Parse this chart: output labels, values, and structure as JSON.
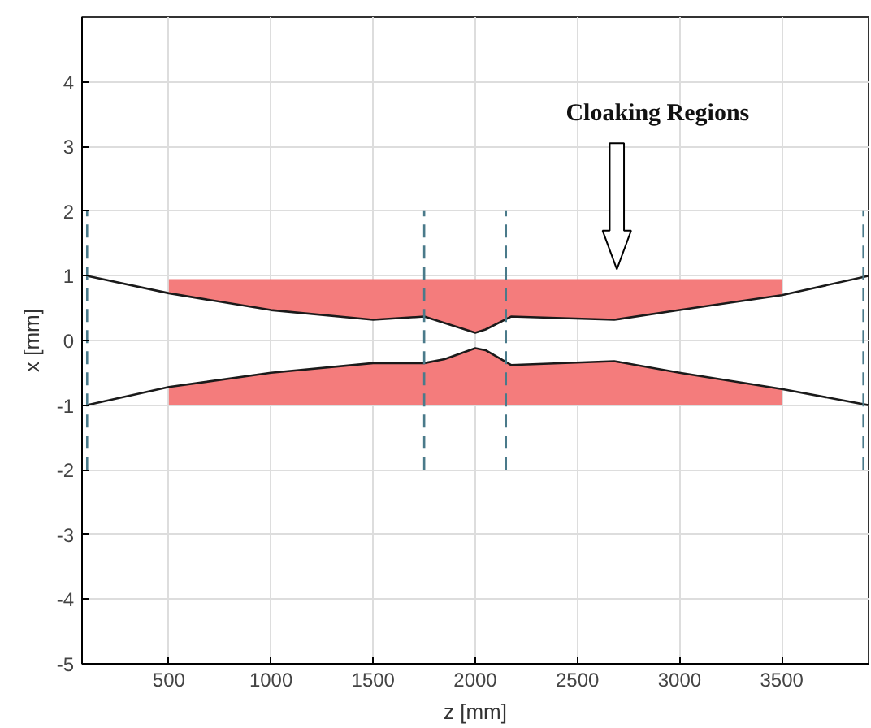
{
  "chart_data": {
    "type": "line",
    "xlabel": "z [mm]",
    "ylabel": "x [mm]",
    "xlim": [
      75,
      3925
    ],
    "ylim": [
      -5,
      5
    ],
    "xticks": [
      500,
      1000,
      1500,
      2000,
      2500,
      3000,
      3500
    ],
    "yticks": [
      -5,
      -4,
      -3,
      -2,
      -1,
      0,
      1,
      2,
      3,
      4
    ],
    "grid": true,
    "annotations": [
      "Cloaking Regions"
    ],
    "series": [
      {
        "color": "#f47c7c",
        "x": [
          500,
          1000,
          1500,
          1750,
          1850,
          2000,
          2050,
          2175,
          2680,
          3000,
          3500
        ],
        "values": [
          null,
          null,
          null,
          null,
          null,
          null,
          null,
          null,
          null,
          null,
          null
        ],
        "lower": [
          0.73,
          0.47,
          0.32,
          0.37,
          0.27,
          0.12,
          0.17,
          0.37,
          0.32,
          0.47,
          0.7
        ],
        "upper": [
          0.95,
          0.95,
          0.95,
          0.95,
          0.95,
          0.95,
          0.95,
          0.95,
          0.95,
          0.95,
          0.95
        ]
      },
      {
        "color": "#f47c7c",
        "x": [
          500,
          1000,
          1500,
          1750,
          1850,
          2000,
          2050,
          2175,
          2680,
          3000,
          3500
        ],
        "values": [
          null,
          null,
          null,
          null,
          null,
          null,
          null,
          null,
          null,
          null,
          null
        ],
        "lower": [
          -1,
          -1,
          -1,
          -1,
          -1,
          -1,
          -1,
          -1,
          -1,
          -1,
          -1
        ],
        "upper": [
          -0.72,
          -0.5,
          -0.35,
          -0.35,
          -0.29,
          -0.12,
          -0.15,
          -0.38,
          -0.32,
          -0.5,
          -0.75
        ]
      },
      {
        "color": "#1a1a1a",
        "x": [
          100,
          500,
          1000,
          1500,
          1750,
          1850,
          2000,
          2050,
          2175,
          2680,
          3000,
          3500,
          3925
        ],
        "values": [
          1,
          0.73,
          0.47,
          0.32,
          0.37,
          0.27,
          0.12,
          0.17,
          0.37,
          0.32,
          0.47,
          0.7,
          1.0
        ]
      },
      {
        "color": "#1a1a1a",
        "x": [
          100,
          500,
          1000,
          1500,
          1750,
          1850,
          2000,
          2050,
          2175,
          2680,
          3000,
          3500,
          3925
        ],
        "values": [
          -1,
          -0.72,
          -0.5,
          -0.35,
          -0.35,
          -0.29,
          -0.12,
          -0.15,
          -0.38,
          -0.32,
          -0.5,
          -0.75,
          -1.0
        ]
      },
      {
        "color": "#4a7a8a",
        "line_style": "dashed",
        "x": [
          100,
          100
        ],
        "values": [
          -2,
          2
        ]
      },
      {
        "color": "#4a7a8a",
        "line_style": "dashed",
        "x": [
          1750,
          1750
        ],
        "values": [
          -2,
          2
        ]
      },
      {
        "color": "#4a7a8a",
        "line_style": "dashed",
        "x": [
          2150,
          2150
        ],
        "values": [
          -2,
          2
        ]
      },
      {
        "color": "#4a7a8a",
        "line_style": "dashed",
        "x": [
          3900,
          3900
        ],
        "values": [
          -2,
          2
        ]
      }
    ]
  }
}
